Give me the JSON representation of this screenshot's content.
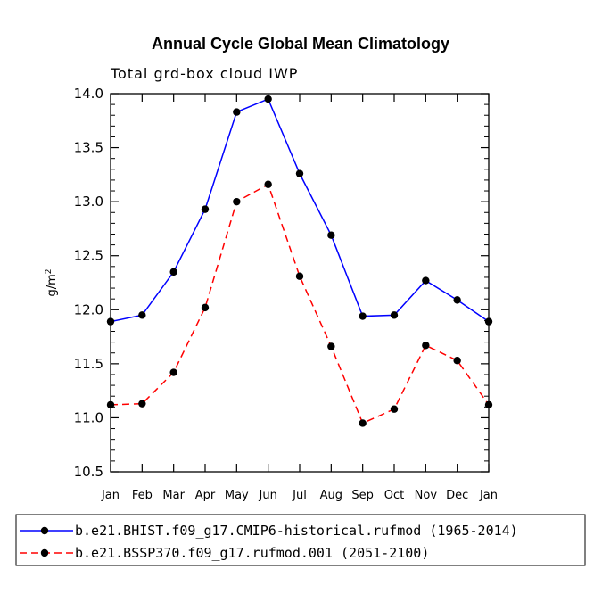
{
  "chart_data": {
    "type": "line",
    "title": "Annual Cycle Global Mean Climatology",
    "subtitle": "Total grd-box cloud IWP",
    "xlabel": "",
    "ylabel": "g/m",
    "ylabel_superscript": "2",
    "ylim": [
      10.5,
      14.0
    ],
    "yticks": [
      "10.5",
      "11.0",
      "11.5",
      "12.0",
      "12.5",
      "13.0",
      "13.5",
      "14.0"
    ],
    "categories": [
      "Jan",
      "Feb",
      "Mar",
      "Apr",
      "May",
      "Jun",
      "Jul",
      "Aug",
      "Sep",
      "Oct",
      "Nov",
      "Dec",
      "Jan"
    ],
    "series": [
      {
        "name": "b.e21.BHIST.f09_g17.CMIP6-historical.rufmod (1965-2014)",
        "color": "#0000ff",
        "dash": "solid",
        "values": [
          11.89,
          11.95,
          12.35,
          12.93,
          13.83,
          13.95,
          13.26,
          12.69,
          11.94,
          11.95,
          12.27,
          12.09,
          11.89
        ]
      },
      {
        "name": "b.e21.BSSP370.f09_g17.rufmod.001 (2051-2100)",
        "color": "#ff0000",
        "dash": "dashed",
        "values": [
          11.12,
          11.13,
          11.42,
          12.02,
          13.0,
          13.16,
          12.31,
          11.66,
          10.95,
          11.08,
          11.67,
          11.53,
          11.12
        ]
      }
    ]
  }
}
